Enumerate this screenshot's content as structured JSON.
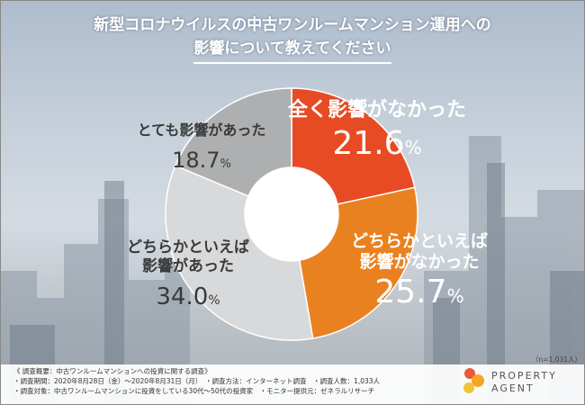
{
  "title": {
    "line1": "新型コロナウイルスの中古ワンルームマンション運用への",
    "line2": "影響について教えてください"
  },
  "colors": {
    "s1": "#e74b23",
    "s2": "#ea8120",
    "s3": "#d8d9da",
    "s4": "#aeafb0",
    "label_dark": "#3a3a3a",
    "label_light": "#ffffff"
  },
  "chart_data": {
    "type": "pie",
    "donut": true,
    "start_angle_deg": 0,
    "direction": "clockwise",
    "series": [
      {
        "name": "全く影響がなかった",
        "value": 21.6,
        "label_lines": [
          "全く影響がなかった"
        ]
      },
      {
        "name": "どちらかといえば影響がなかった",
        "value": 25.7,
        "label_lines": [
          "どちらかといえば",
          "影響がなかった"
        ]
      },
      {
        "name": "どちらかといえば影響があった",
        "value": 34.0,
        "label_lines": [
          "どちらかといえば",
          "影響があった"
        ]
      },
      {
        "name": "とても影響があった",
        "value": 18.7,
        "label_lines": [
          "とても影響があった"
        ]
      }
    ],
    "percent_suffix": "%"
  },
  "sample_size": "（n=1,031人）",
  "footer": {
    "summary": "《 調査概要：中古ワンルームマンションへの投資に関する調査》",
    "line2": "・調査期間：2020年8月28日（金）～2020年8月31日（月）　・調査方法：インターネット調査　・調査人数：1,033人",
    "line3": "・調査対象：中古ワンルームマンションに投資をしている30代～50代の投資家　・モニター提供元：ゼネラルリサーチ"
  },
  "logo": {
    "line1": "PROPERTY",
    "line2": "AGENT",
    "icon": "property-agent-logo-icon"
  }
}
